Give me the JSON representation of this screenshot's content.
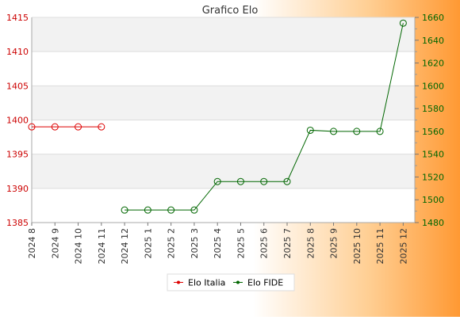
{
  "chart_data": {
    "type": "line",
    "title": "Grafico Elo",
    "categories": [
      "2024 8",
      "2024 9",
      "2024 10",
      "2024 11",
      "2024 12",
      "2025 1",
      "2025 2",
      "2025 3",
      "2025 4",
      "2025 5",
      "2025 6",
      "2025 7",
      "2025 8",
      "2025 9",
      "2025 10",
      "2025 11",
      "2025 12"
    ],
    "left_axis": {
      "ylim": [
        1385,
        1415
      ],
      "ticks": [
        1385,
        1390,
        1395,
        1400,
        1405,
        1410,
        1415
      ],
      "color": "#cc0000"
    },
    "right_axis": {
      "ylim": [
        1480,
        1660
      ],
      "ticks": [
        1480,
        1500,
        1520,
        1540,
        1560,
        1580,
        1600,
        1620,
        1640,
        1660
      ],
      "color": "#006600"
    },
    "series": [
      {
        "name": "Elo Italia",
        "axis": "left",
        "color": "#dd0000",
        "values": [
          1399,
          1399,
          1399,
          1399,
          null,
          null,
          null,
          null,
          null,
          null,
          null,
          null,
          null,
          null,
          null,
          null,
          null
        ]
      },
      {
        "name": "Elo FIDE",
        "axis": "right",
        "color": "#006600",
        "values": [
          null,
          null,
          null,
          null,
          1491,
          1491,
          1491,
          1491,
          1516,
          1516,
          1516,
          1516,
          1561,
          1560,
          1560,
          1560,
          1655
        ]
      }
    ],
    "grid": true,
    "legend_position": "bottom"
  }
}
